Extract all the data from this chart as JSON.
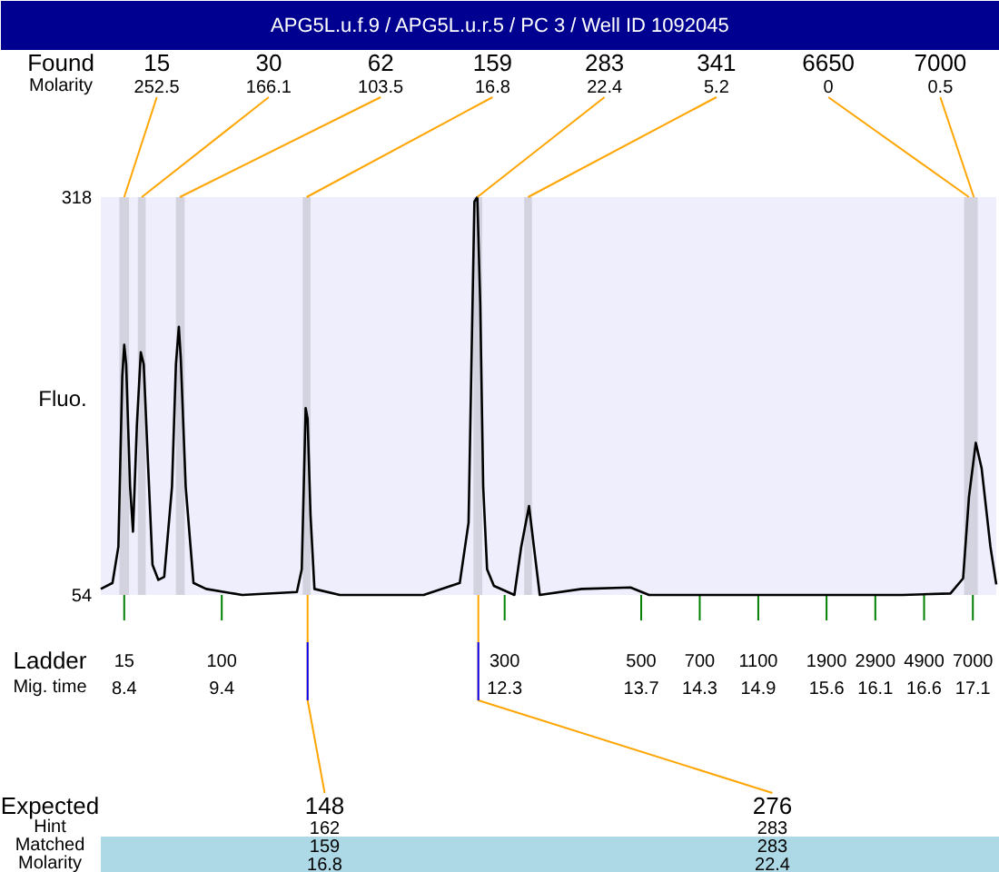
{
  "chart_data": {
    "type": "line",
    "title": "APG5L.u.f.9 / APG5L.u.r.5 / PC 3 / Well ID 1092045",
    "ylabel": "Fluo.",
    "xlabel": "Mig. time",
    "color": "#000000",
    "x": [
      8.16,
      8.28,
      8.34,
      8.38,
      8.4,
      8.42,
      8.46,
      8.49,
      8.53,
      8.57,
      8.6,
      8.64,
      8.69,
      8.75,
      8.81,
      8.89,
      8.93,
      8.96,
      8.98,
      9.03,
      9.11,
      9.24,
      9.61,
      10.17,
      10.22,
      10.26,
      10.28,
      10.31,
      10.35,
      10.61,
      11.47,
      11.84,
      11.93,
      11.99,
      12.02,
      12.05,
      12.08,
      12.12,
      12.19,
      12.4,
      12.47,
      12.55,
      12.6,
      12.66,
      13.09,
      13.59,
      13.78,
      14.82,
      16.38,
      16.87,
      17.0,
      17.06,
      17.13,
      17.19,
      17.28,
      17.34
    ],
    "values": [
      58,
      62,
      86,
      199,
      220,
      207,
      126,
      96,
      167,
      215,
      207,
      147,
      74,
      64,
      66,
      126,
      207,
      232,
      211,
      126,
      62,
      58,
      54,
      56,
      71,
      178,
      171,
      107,
      58,
      54,
      54,
      62,
      102,
      315,
      318,
      247,
      126,
      71,
      60,
      54,
      86,
      113,
      86,
      54,
      58,
      59,
      54,
      54,
      54,
      55,
      65,
      119,
      155,
      138,
      86,
      61
    ],
    "xlim": [
      8.16,
      17.34
    ],
    "ylim": [
      54,
      318
    ],
    "yticks": [
      54,
      318
    ],
    "xticks": [
      8.4,
      9.4,
      12.3,
      13.7,
      14.3,
      14.9,
      15.6,
      16.1,
      16.6,
      17.1
    ],
    "bands": [
      {
        "axis": "x",
        "from": 8.35,
        "to": 8.45,
        "color": "#d3d3e0"
      },
      {
        "axis": "x",
        "from": 8.54,
        "to": 8.62,
        "color": "#d3d3e0"
      },
      {
        "axis": "x",
        "from": 8.93,
        "to": 9.02,
        "color": "#d3d3e0"
      },
      {
        "axis": "x",
        "from": 10.23,
        "to": 10.31,
        "color": "#d3d3e0"
      },
      {
        "axis": "x",
        "from": 11.98,
        "to": 12.07,
        "color": "#d3d3e0"
      },
      {
        "axis": "x",
        "from": 12.5,
        "to": 12.58,
        "color": "#d3d3e0"
      },
      {
        "axis": "x",
        "from": 17.01,
        "to": 17.08,
        "color": "#d3d3e0"
      },
      {
        "axis": "x",
        "from": 17.08,
        "to": 17.15,
        "color": "#d3d3e0"
      }
    ],
    "annotations": [
      "Found",
      "Molarity",
      {
        "text": "15",
        "x": 8.4,
        "y": 318
      },
      "252.5",
      {
        "text": "30",
        "x": 8.58,
        "y": 318
      },
      "166.1",
      {
        "text": "62",
        "x": 8.97,
        "y": 318
      },
      "103.5",
      {
        "text": "159",
        "x": 10.27,
        "y": 318
      },
      "16.8",
      {
        "text": "283",
        "x": 12.02,
        "y": 318
      },
      "22.4",
      {
        "text": "341",
        "x": 12.54,
        "y": 318
      },
      "5.2",
      {
        "text": "6650",
        "x": 17.06,
        "y": 318
      },
      "0",
      {
        "text": "7000",
        "x": 17.11,
        "y": 318
      },
      "0.5",
      "Ladder",
      "15",
      "100",
      "300",
      "500",
      "700",
      "1100",
      "1900",
      "2900",
      "4900",
      "7000",
      "Expected",
      "Hint",
      "Matched",
      "Molarity",
      {
        "text": "148",
        "x": 10.28,
        "y": 54
      },
      "162",
      "159",
      "16.8",
      {
        "text": "276",
        "x": 12.03,
        "y": 54
      },
      "283",
      "283",
      "22.4"
    ],
    "grid": false
  }
}
